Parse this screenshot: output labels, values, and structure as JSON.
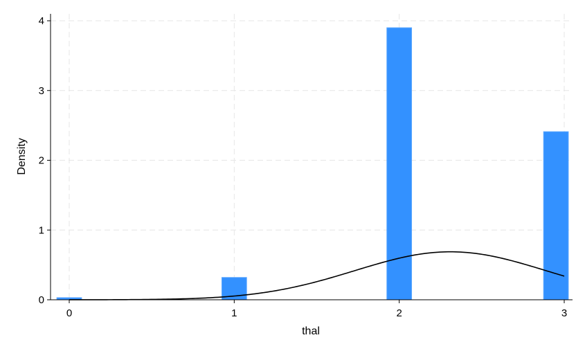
{
  "chart_data": {
    "type": "bar",
    "title": "",
    "xlabel": "thal",
    "ylabel": "Density",
    "xlim": [
      -0.1,
      3.05
    ],
    "ylim": [
      0,
      4.1
    ],
    "xticks": [
      0,
      1,
      2,
      3
    ],
    "yticks": [
      0,
      1,
      2,
      3,
      4
    ],
    "grid": true,
    "bin_width": 0.15,
    "bars": [
      {
        "x": 0.0,
        "density": 0.03
      },
      {
        "x": 1.0,
        "density": 0.32
      },
      {
        "x": 2.0,
        "density": 3.9
      },
      {
        "x": 2.95,
        "density": 2.41
      }
    ],
    "normal_curve": {
      "mean": 2.31,
      "sd": 0.58
    },
    "colors": {
      "bars": "#3391ff",
      "bar_edge": "#5aa6ff",
      "curve": "#000000"
    }
  }
}
